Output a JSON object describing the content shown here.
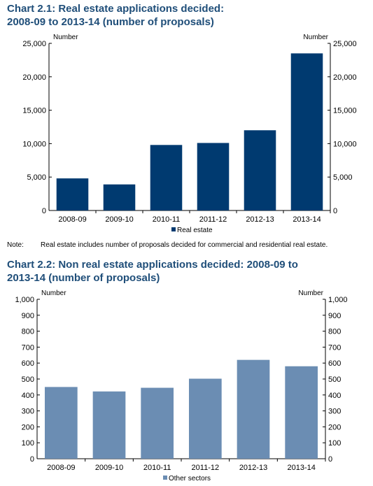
{
  "chart_data": [
    {
      "type": "bar",
      "title": "Chart 2.1: Real estate applications decided: 2008-09 to 2013-14 (number of proposals)",
      "left_axis_label": "Number",
      "right_axis_label": "Number",
      "categories": [
        "2008-09",
        "2009-10",
        "2010-11",
        "2011-12",
        "2012-13",
        "2013-14"
      ],
      "series": [
        {
          "name": "Real estate",
          "values": [
            4800,
            3900,
            9800,
            10100,
            12000,
            23500
          ]
        }
      ],
      "ylim": [
        0,
        25000
      ],
      "yticks": [
        0,
        5000,
        10000,
        15000,
        20000,
        25000
      ],
      "ytick_labels": [
        "0",
        "5,000",
        "10,000",
        "15,000",
        "20,000",
        "25,000"
      ],
      "grid": false,
      "legend_position": "bottom-center",
      "color": "#003a70"
    },
    {
      "type": "bar",
      "title": "Chart 2.2: Non real estate applications decided: 2008-09 to 2013-14 (number of proposals)",
      "left_axis_label": "Number",
      "right_axis_label": "Number",
      "categories": [
        "2008-09",
        "2009-10",
        "2010-11",
        "2011-12",
        "2012-13",
        "2013-14"
      ],
      "series": [
        {
          "name": "Other sectors",
          "values": [
            450,
            422,
            445,
            502,
            620,
            580
          ]
        }
      ],
      "ylim": [
        0,
        1000
      ],
      "yticks": [
        0,
        100,
        200,
        300,
        400,
        500,
        600,
        700,
        800,
        900,
        1000
      ],
      "ytick_labels": [
        "0",
        "100",
        "200",
        "300",
        "400",
        "500",
        "600",
        "700",
        "800",
        "900",
        "1,000"
      ],
      "grid": false,
      "legend_position": "bottom-center",
      "color": "#6b8db3"
    }
  ],
  "note": {
    "label": "Note:",
    "text": "Real estate includes number of proposals decided for commercial and residential real estate."
  }
}
